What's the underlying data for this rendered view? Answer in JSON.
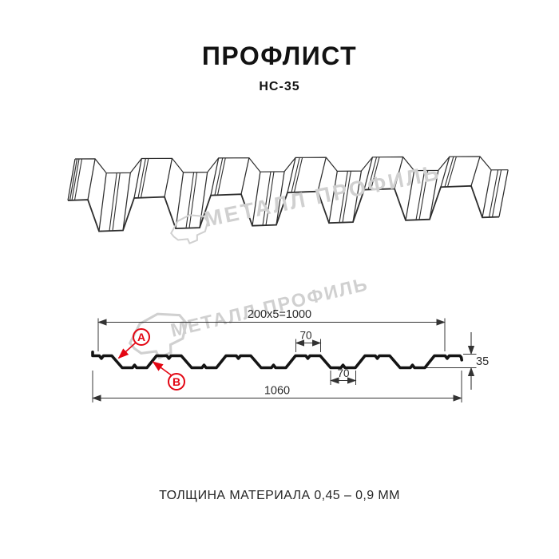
{
  "header": {
    "title": "ПРОФЛИСТ",
    "subtitle": "НС-35"
  },
  "watermark": {
    "text": "МЕТАЛЛ ПРОФИЛЬ",
    "color": "#d0d0d0"
  },
  "diagram": {
    "labels": {
      "point_a": "A",
      "point_b": "B"
    },
    "dimensions": {
      "top_width": "200x5=1000",
      "rib_top_width": "70",
      "rib_bottom_width": "70",
      "total_width": "1060",
      "height": "35"
    },
    "accent_color": "#e30613",
    "line_color": "#1a1a1a"
  },
  "footer": {
    "thickness_note": "ТОЛЩИНА МАТЕРИАЛА 0,45 – 0,9 ММ"
  }
}
